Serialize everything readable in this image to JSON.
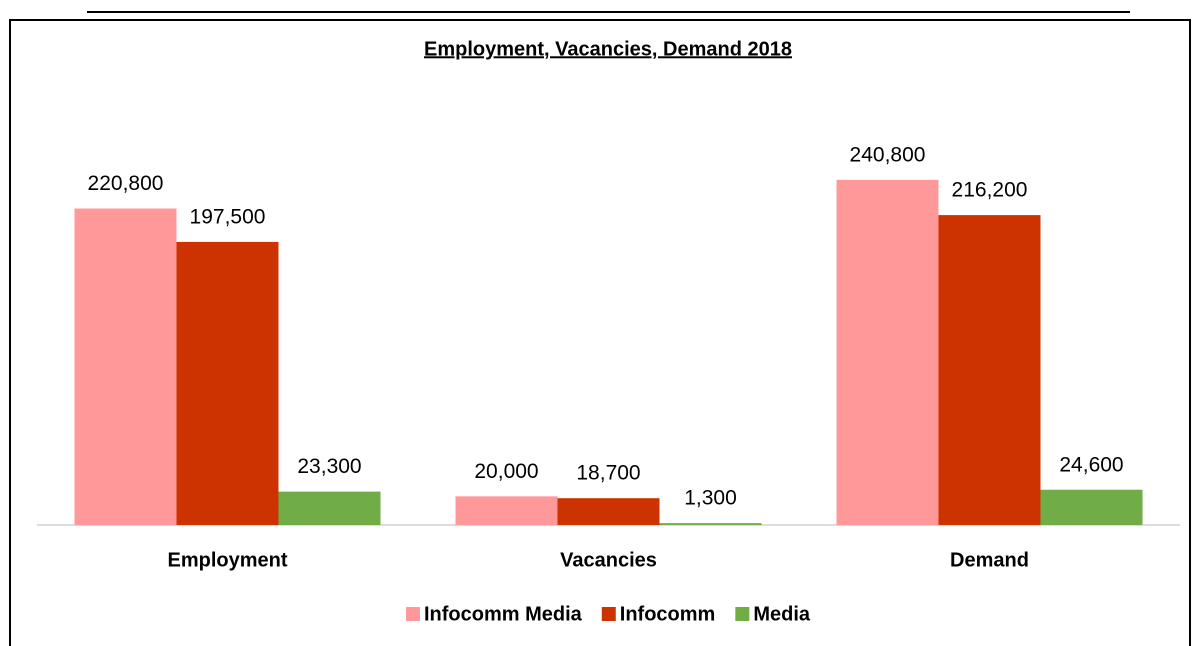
{
  "chart_data": {
    "type": "bar",
    "title": "Employment, Vacancies, Demand 2018",
    "categories": [
      "Employment",
      "Vacancies",
      "Demand"
    ],
    "series": [
      {
        "name": "Infocomm Media",
        "color": "#ff9999",
        "values": [
          220800,
          20000,
          240800
        ],
        "value_labels": [
          "220,800",
          "20,000",
          "240,800"
        ]
      },
      {
        "name": "Infocomm",
        "color": "#cc3300",
        "values": [
          197500,
          18700,
          216200
        ],
        "value_labels": [
          "197,500",
          "18,700",
          "216,200"
        ]
      },
      {
        "name": "Media",
        "color": "#70ad47",
        "values": [
          23300,
          1300,
          24600
        ],
        "value_labels": [
          "23,300",
          "1,300",
          "24,600"
        ]
      }
    ],
    "ylim": [
      0,
      300000
    ]
  }
}
